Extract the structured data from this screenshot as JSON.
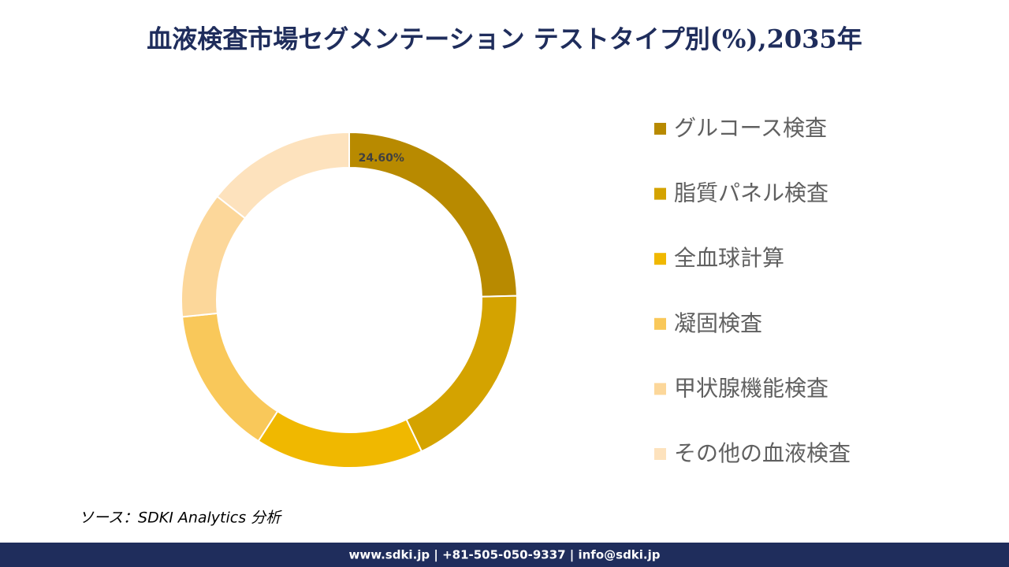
{
  "chart_data": {
    "type": "donut",
    "title": "血液検査市場セグメンテーション テストタイプ別(%),2035年",
    "categories": [
      "グルコース検査",
      "脂質パネル検査",
      "全血球計算",
      "凝固検査",
      "甲状腺機能検査",
      "その他の血液検査"
    ],
    "values": [
      24.6,
      18.3,
      16.2,
      14.3,
      12.2,
      14.4
    ],
    "value_labels": [
      "24.60%",
      null,
      null,
      null,
      null,
      null
    ],
    "colors": [
      "#b88a00",
      "#d4a300",
      "#f0b800",
      "#f9c85a",
      "#fcd79a",
      "#fde2bd"
    ],
    "legend": "right"
  },
  "source": "ソース：SDKI Analytics 分析",
  "footer": "www.sdki.jp | +81-505-050-9337 | info@sdki.jp"
}
